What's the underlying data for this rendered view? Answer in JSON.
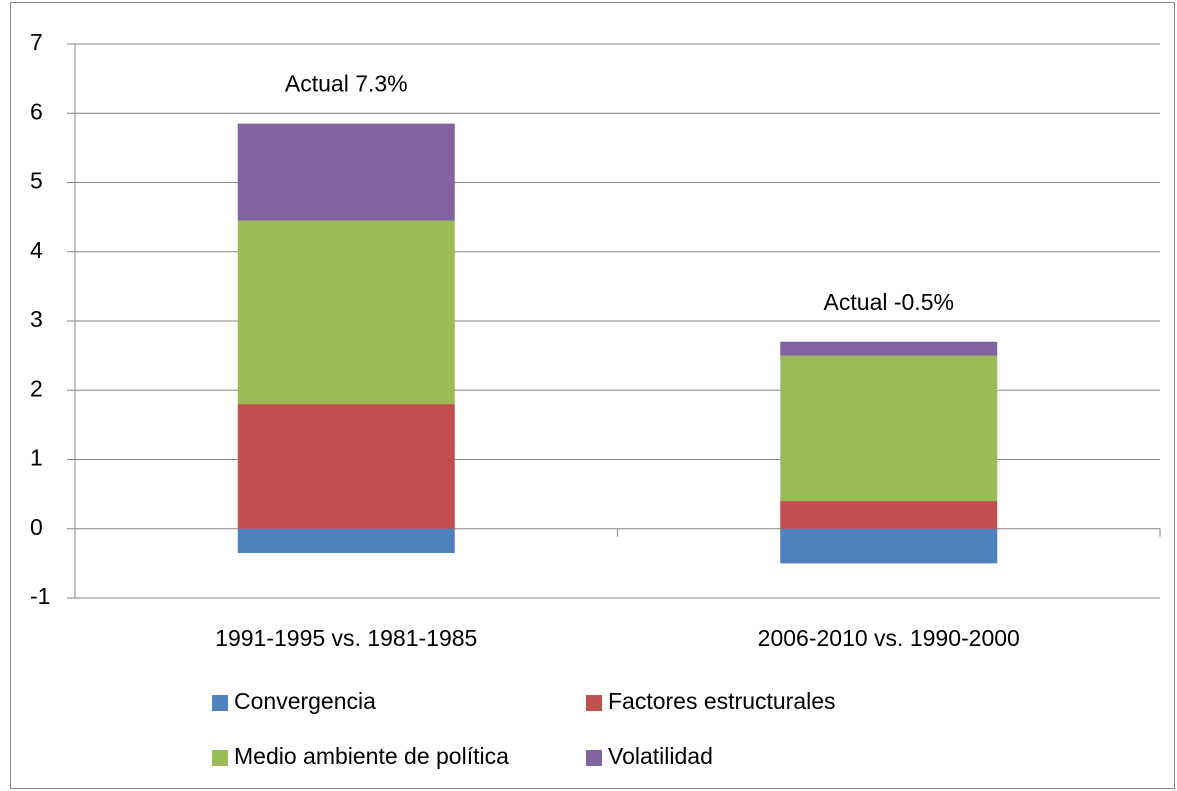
{
  "chart_data": {
    "type": "stacked_bar",
    "categories": [
      "1991-1995 vs. 1981-1985",
      "2006-2010 vs. 1990-2000"
    ],
    "series": [
      {
        "name": "Convergencia",
        "color": "#4f81bd",
        "values": [
          -0.35,
          -0.5
        ]
      },
      {
        "name": "Factores estructurales",
        "color": "#c0504d",
        "values": [
          1.8,
          0.4
        ]
      },
      {
        "name": "Medio ambiente de política",
        "color": "#9bbb59",
        "values": [
          2.65,
          2.1
        ]
      },
      {
        "name": "Volatilidad",
        "color": "#8064a2",
        "values": [
          1.4,
          0.2
        ]
      }
    ],
    "annotations": [
      "Actual 7.3%",
      "Actual -0.5%"
    ],
    "ylim": [
      -1,
      7
    ],
    "yticks": [
      -1,
      0,
      1,
      2,
      3,
      4,
      5,
      6,
      7
    ],
    "grid": true
  }
}
